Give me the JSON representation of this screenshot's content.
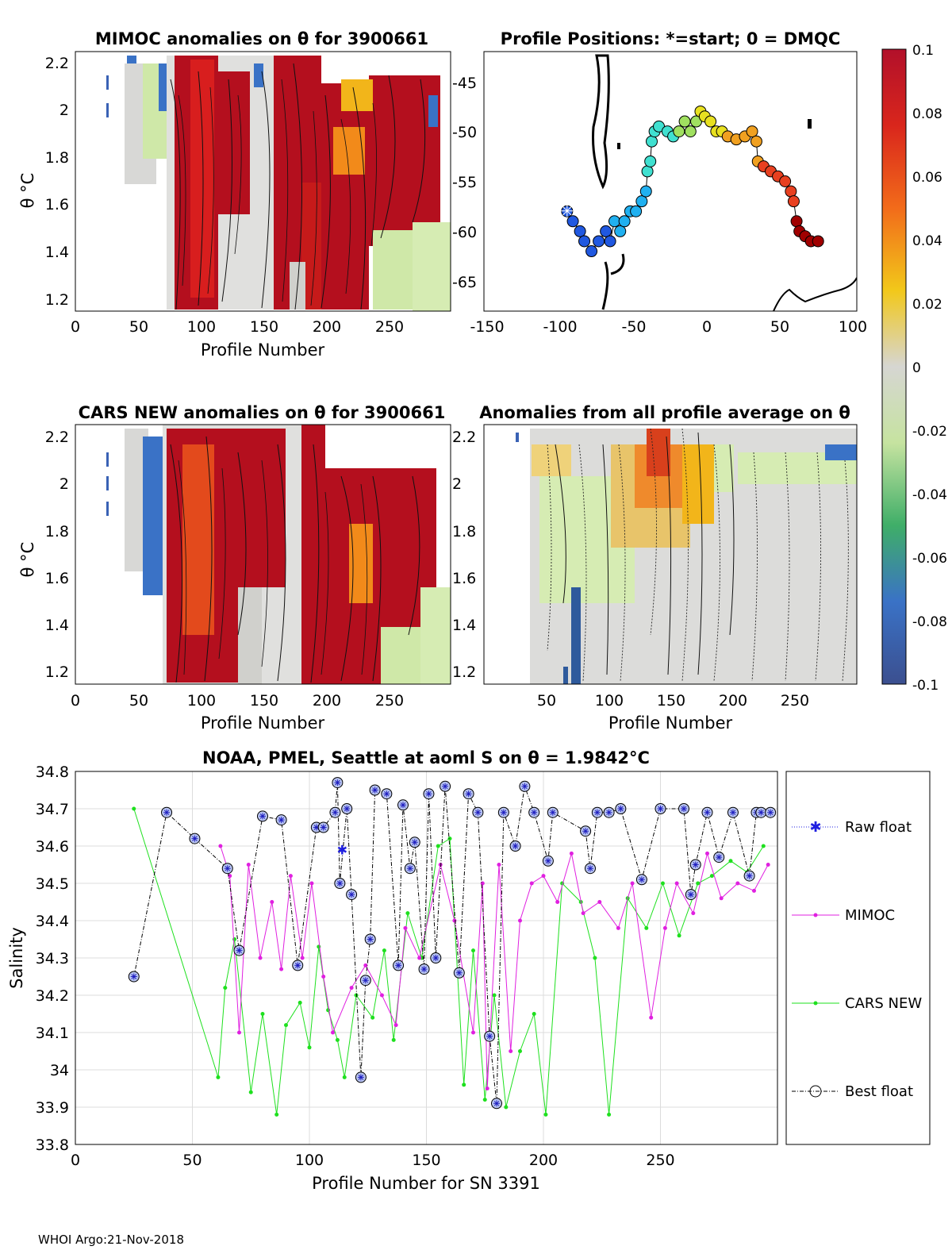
{
  "footer": "WHOI Argo:21-Nov-2018",
  "colorbar": {
    "ticks": [
      "0.1",
      "0.08",
      "0.06",
      "0.04",
      "0.02",
      "0",
      "-0.02",
      "-0.04",
      "-0.06",
      "-0.08",
      "-0.1"
    ],
    "range": [
      -0.1,
      0.1
    ]
  },
  "panels": {
    "mimoc": {
      "title": "MIMOC anomalies on θ  for 3900661",
      "xlabel": "Profile Number",
      "ylabel": "θ °C",
      "xticks": [
        "0",
        "50",
        "100",
        "150",
        "200",
        "250"
      ],
      "yticks": [
        "2.2",
        "2",
        "1.8",
        "1.6",
        "1.4",
        "1.2"
      ]
    },
    "map": {
      "title": "Profile Positions: *=start; 0 = DMQC",
      "xticks": [
        "-150",
        "-100",
        "-50",
        "0",
        "50",
        "100"
      ],
      "yticks": [
        "-45",
        "-50",
        "-55",
        "-60",
        "-65"
      ]
    },
    "cars": {
      "title": "CARS NEW anomalies on θ for 3900661",
      "xlabel": "Profile Number",
      "ylabel": "θ °C",
      "xticks": [
        "0",
        "50",
        "100",
        "150",
        "200",
        "250"
      ],
      "yticks": [
        "2.2",
        "2",
        "1.8",
        "1.6",
        "1.4",
        "1.2"
      ]
    },
    "allavg": {
      "title": "Anomalies from all profile average on θ",
      "xlabel": "Profile Number",
      "xticks": [
        "50",
        "100",
        "150",
        "200",
        "250"
      ],
      "yticks": [
        "2.2",
        "2",
        "1.8",
        "1.6",
        "1.4",
        "1.2"
      ]
    }
  },
  "chart_data": [
    {
      "type": "heatmap",
      "title": "MIMOC anomalies on θ  for 3900661",
      "xlabel": "Profile Number",
      "ylabel": "θ °C",
      "xlim": [
        0,
        300
      ],
      "ylim": [
        1.15,
        2.23
      ],
      "clim": [
        -0.1,
        0.1
      ]
    },
    {
      "type": "scatter",
      "title": "Profile Positions: *=start; 0 = DMQC",
      "xlim": [
        -160,
        100
      ],
      "ylim": [
        -68,
        -42
      ],
      "start": [
        -102,
        -58
      ],
      "track": [
        [
          -102,
          -58
        ],
        [
          -98,
          -59
        ],
        [
          -93,
          -60
        ],
        [
          -90,
          -61
        ],
        [
          -85,
          -62
        ],
        [
          -80,
          -61
        ],
        [
          -75,
          -60
        ],
        [
          -72,
          -61
        ],
        [
          -69,
          -59
        ],
        [
          -65,
          -60
        ],
        [
          -62,
          -59
        ],
        [
          -58,
          -58
        ],
        [
          -54,
          -58
        ],
        [
          -50,
          -57
        ],
        [
          -47,
          -56
        ],
        [
          -46,
          -54
        ],
        [
          -44,
          -53
        ],
        [
          -43,
          -51
        ],
        [
          -41,
          -50
        ],
        [
          -38,
          -49.5
        ],
        [
          -32,
          -50
        ],
        [
          -28,
          -50.5
        ],
        [
          -24,
          -50
        ],
        [
          -20,
          -49
        ],
        [
          -16,
          -50
        ],
        [
          -12,
          -49
        ],
        [
          -9,
          -48
        ],
        [
          -6,
          -48.5
        ],
        [
          -2,
          -49
        ],
        [
          2,
          -50
        ],
        [
          6,
          -50
        ],
        [
          10,
          -50.5
        ],
        [
          16,
          -50.8
        ],
        [
          22,
          -50.5
        ],
        [
          27,
          -50
        ],
        [
          30,
          -51
        ],
        [
          31,
          -53
        ],
        [
          35,
          -53.5
        ],
        [
          40,
          -54
        ],
        [
          45,
          -54.5
        ],
        [
          50,
          -55
        ],
        [
          54,
          -56
        ],
        [
          56,
          -57
        ],
        [
          58,
          -59
        ],
        [
          60,
          -60
        ],
        [
          64,
          -60.5
        ],
        [
          68,
          -61
        ],
        [
          73,
          -61
        ]
      ]
    },
    {
      "type": "heatmap",
      "title": "CARS NEW anomalies on θ for 3900661",
      "xlabel": "Profile Number",
      "ylabel": "θ °C",
      "xlim": [
        0,
        300
      ],
      "ylim": [
        1.15,
        2.23
      ],
      "clim": [
        -0.1,
        0.1
      ]
    },
    {
      "type": "heatmap",
      "title": "Anomalies from all profile average on θ",
      "xlabel": "Profile Number",
      "xlim": [
        0,
        300
      ],
      "ylim": [
        1.15,
        2.23
      ],
      "clim": [
        -0.1,
        0.1
      ]
    },
    {
      "type": "line",
      "title": "NOAA, PMEL, Seattle at aoml S on θ = 1.9842°C",
      "xlabel": "Profile Number for SN 3391",
      "ylabel": "Salinity",
      "xlim": [
        0,
        300
      ],
      "ylim": [
        33.8,
        34.8
      ],
      "xticks": [
        "0",
        "50",
        "100",
        "150",
        "200",
        "250"
      ],
      "yticks": [
        "34.8",
        "34.7",
        "34.6",
        "34.5",
        "34.4",
        "34.3",
        "34.2",
        "34.1",
        "34",
        "33.9",
        "33.8"
      ],
      "legend": [
        "Raw float",
        "MIMOC",
        "CARS NEW",
        "Best float"
      ],
      "series": [
        {
          "name": "Best float",
          "x": [
            25,
            39,
            51,
            65,
            70,
            80,
            88,
            95,
            103,
            106,
            111,
            112,
            113,
            116,
            118,
            122,
            124,
            126,
            128,
            133,
            138,
            140,
            143,
            145,
            149,
            151,
            154,
            158,
            164,
            168,
            172,
            177,
            180,
            183,
            188,
            192,
            196,
            202,
            204,
            218,
            220,
            223,
            228,
            233,
            242,
            250,
            260,
            263,
            265,
            270,
            275,
            281,
            288,
            291,
            293,
            297
          ],
          "y": [
            34.25,
            34.69,
            34.62,
            34.54,
            34.32,
            34.68,
            34.67,
            34.28,
            34.65,
            34.65,
            34.69,
            34.77,
            34.5,
            34.7,
            34.47,
            33.98,
            34.24,
            34.35,
            34.75,
            34.74,
            34.28,
            34.71,
            34.54,
            34.61,
            34.27,
            34.74,
            34.3,
            34.76,
            34.26,
            34.74,
            34.69,
            34.09,
            33.91,
            34.69,
            34.6,
            34.76,
            34.69,
            34.56,
            34.69,
            34.64,
            34.54,
            34.69,
            34.69,
            34.7,
            34.51,
            34.7,
            34.7,
            34.47,
            34.55,
            34.69,
            34.57,
            34.69,
            34.52,
            34.69,
            34.69,
            34.69
          ]
        },
        {
          "name": "Raw float",
          "x": [
            114
          ],
          "y": [
            34.59
          ]
        },
        {
          "name": "MIMOC",
          "x": [
            62,
            66,
            70,
            74,
            79,
            84,
            88,
            92,
            97,
            101,
            106,
            110,
            118,
            124,
            131,
            137,
            141,
            147,
            156,
            162,
            170,
            174,
            176,
            181,
            186,
            190,
            195,
            200,
            206,
            212,
            217,
            224,
            232,
            238,
            246,
            252,
            257,
            264,
            270,
            276,
            283,
            290,
            296
          ],
          "y": [
            34.6,
            34.52,
            34.1,
            34.55,
            34.3,
            34.45,
            34.27,
            34.52,
            34.3,
            34.5,
            34.25,
            34.1,
            34.22,
            34.28,
            34.2,
            34.12,
            34.38,
            34.3,
            34.55,
            34.4,
            34.1,
            34.5,
            33.95,
            34.55,
            34.05,
            34.4,
            34.5,
            34.52,
            34.45,
            34.58,
            34.42,
            34.45,
            34.38,
            34.5,
            34.14,
            34.38,
            34.5,
            34.42,
            34.58,
            34.46,
            34.5,
            34.48,
            34.55
          ]
        },
        {
          "name": "CARS NEW",
          "x": [
            25,
            61,
            64,
            68,
            75,
            80,
            86,
            90,
            96,
            100,
            104,
            108,
            112,
            115,
            120,
            127,
            132,
            136,
            142,
            148,
            155,
            160,
            166,
            170,
            175,
            179,
            184,
            190,
            196,
            201,
            208,
            216,
            222,
            228,
            236,
            244,
            251,
            258,
            266,
            272,
            280,
            287,
            294
          ],
          "y": [
            34.7,
            33.98,
            34.22,
            34.35,
            33.94,
            34.15,
            33.88,
            34.12,
            34.18,
            34.06,
            34.33,
            34.16,
            34.08,
            33.98,
            34.2,
            34.14,
            34.32,
            34.08,
            34.42,
            34.3,
            34.6,
            34.62,
            33.96,
            34.32,
            33.92,
            34.2,
            33.9,
            34.05,
            34.15,
            33.88,
            34.5,
            34.45,
            34.3,
            33.88,
            34.46,
            34.38,
            34.5,
            34.36,
            34.5,
            34.52,
            34.56,
            34.53,
            34.6
          ]
        }
      ]
    }
  ]
}
